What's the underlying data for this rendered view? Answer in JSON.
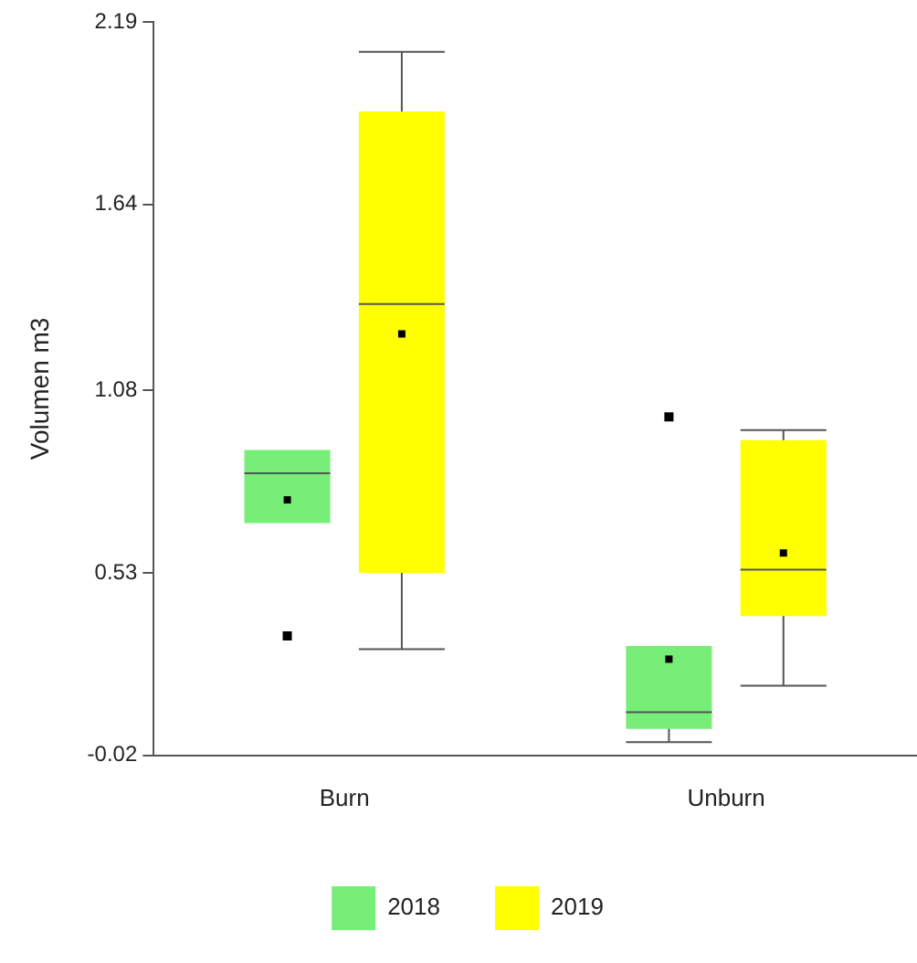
{
  "chart_data": {
    "type": "box",
    "ylabel": "Volumen m3",
    "categories": [
      "Burn",
      "Unburn"
    ],
    "ylim": [
      -0.02,
      2.19
    ],
    "yticks": [
      -0.02,
      0.53,
      1.08,
      1.64,
      2.19
    ],
    "grid": false,
    "legend": "bottom",
    "series": [
      {
        "name": "2018",
        "color": "#77ee77",
        "boxes": [
          {
            "low": 0.68,
            "q1": 0.68,
            "median": 0.83,
            "q3": 0.9,
            "high": 0.9,
            "mean": 0.75,
            "outliers": [
              0.34
            ]
          },
          {
            "low": 0.02,
            "q1": 0.06,
            "median": 0.11,
            "q3": 0.31,
            "high": 0.31,
            "mean": 0.27,
            "outliers": [
              1.0
            ]
          }
        ]
      },
      {
        "name": "2019",
        "color": "#ffff00",
        "boxes": [
          {
            "low": 0.3,
            "q1": 0.53,
            "median": 1.34,
            "q3": 1.92,
            "high": 2.1,
            "mean": 1.25
          },
          {
            "low": 0.19,
            "q1": 0.4,
            "median": 0.54,
            "q3": 0.93,
            "high": 0.96,
            "mean": 0.59
          }
        ]
      }
    ]
  }
}
